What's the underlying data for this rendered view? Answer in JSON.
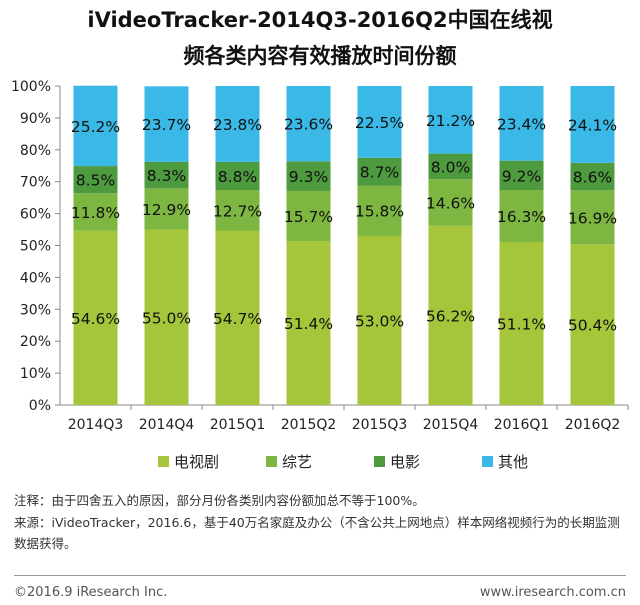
{
  "title_line1": "iVideoTracker-2014Q3-2016Q2中国在线视",
  "title_line2": "频各类内容有效播放时间份额",
  "chart_data": {
    "type": "bar",
    "stacked": true,
    "categories": [
      "2014Q3",
      "2014Q4",
      "2015Q1",
      "2015Q2",
      "2015Q3",
      "2015Q4",
      "2016Q1",
      "2016Q2"
    ],
    "series": [
      {
        "name": "电视剧",
        "color": "#a5c63b",
        "values": [
          54.6,
          55.0,
          54.7,
          51.4,
          53.0,
          56.2,
          51.1,
          50.4
        ],
        "labels": [
          "54.6%",
          "55.0%",
          "54.7%",
          "51.4%",
          "53.0%",
          "56.2%",
          "51.1%",
          "50.4%"
        ]
      },
      {
        "name": "综艺",
        "color": "#7db742",
        "values": [
          11.8,
          12.9,
          12.7,
          15.7,
          15.8,
          14.6,
          16.3,
          16.9
        ],
        "labels": [
          "11.8%",
          "12.9%",
          "12.7%",
          "15.7%",
          "15.8%",
          "14.6%",
          "16.3%",
          "16.9%"
        ]
      },
      {
        "name": "电影",
        "color": "#4e9a3f",
        "values": [
          8.5,
          8.3,
          8.8,
          9.3,
          8.7,
          8.0,
          9.2,
          8.6
        ],
        "labels": [
          "8.5%",
          "8.3%",
          "8.8%",
          "9.3%",
          "8.7%",
          "8.0%",
          "9.2%",
          "8.6%"
        ]
      },
      {
        "name": "其他",
        "color": "#3bb9e6",
        "values": [
          25.2,
          23.7,
          23.8,
          23.6,
          22.5,
          21.2,
          23.4,
          24.1
        ],
        "labels": [
          "25.2%",
          "23.7%",
          "23.8%",
          "23.6%",
          "22.5%",
          "21.2%",
          "23.4%",
          "24.1%"
        ]
      }
    ],
    "yticks": [
      "0%",
      "10%",
      "20%",
      "30%",
      "40%",
      "50%",
      "60%",
      "70%",
      "80%",
      "90%",
      "100%"
    ],
    "ylim": [
      0,
      100
    ],
    "legend_position": "bottom"
  },
  "note": "注释：由于四舍五入的原因，部分月份各类别内容份额加总不等于100%。",
  "source": "来源：iVideoTracker，2016.6，基于40万名家庭及办公（不含公共上网地点）样本网络视频行为的长期监测数据获得。",
  "copyright": "©2016.9 iResearch Inc.",
  "website": "www.iresearch.com.cn"
}
